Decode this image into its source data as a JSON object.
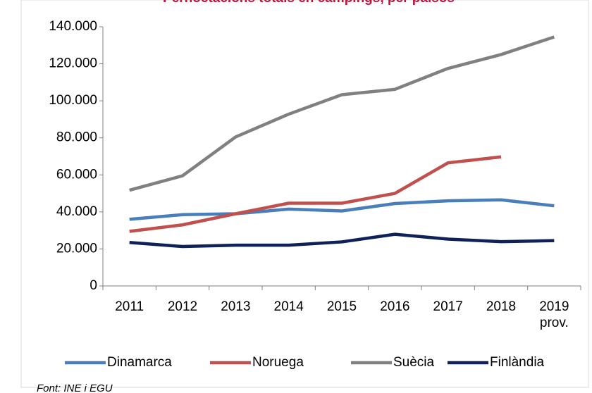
{
  "chart_data": {
    "type": "line",
    "title": "Pernoctacions totals en càmpings, per països",
    "source": "Font: INE i EGU",
    "categories": [
      "2011",
      "2012",
      "2013",
      "2014",
      "2015",
      "2016",
      "2017",
      "2018",
      "2019 prov."
    ],
    "series": [
      {
        "name": "Dinamarca",
        "color": "#4a7ebb",
        "values": [
          36000,
          38500,
          39000,
          41500,
          40500,
          44500,
          46000,
          46500,
          43300
        ]
      },
      {
        "name": "Noruega",
        "color": "#c0504d",
        "values": [
          29500,
          33000,
          39000,
          44700,
          44700,
          50000,
          66500,
          69700,
          null
        ]
      },
      {
        "name": "Suècia",
        "color": "#808080",
        "values": [
          51700,
          59500,
          80500,
          92800,
          103300,
          106200,
          117500,
          125000,
          134500
        ]
      },
      {
        "name": "Finlàndia",
        "color": "#10215a",
        "values": [
          23500,
          21300,
          22000,
          22000,
          23800,
          27900,
          25300,
          23900,
          24500
        ]
      }
    ],
    "ylim": [
      0,
      140000
    ],
    "yticks": [
      0,
      {
        "value": 20000,
        "label": "20.000"
      },
      {
        "value": 40000,
        "label": "40.000"
      },
      {
        "value": 60000,
        "label": "60.000"
      },
      {
        "value": 80000,
        "label": "80.000"
      },
      {
        "value": 100000,
        "label": "100.000"
      },
      {
        "value": 120000,
        "label": "120.000"
      },
      {
        "value": 140000,
        "label": "140.000"
      }
    ],
    "legend": "bottom"
  }
}
